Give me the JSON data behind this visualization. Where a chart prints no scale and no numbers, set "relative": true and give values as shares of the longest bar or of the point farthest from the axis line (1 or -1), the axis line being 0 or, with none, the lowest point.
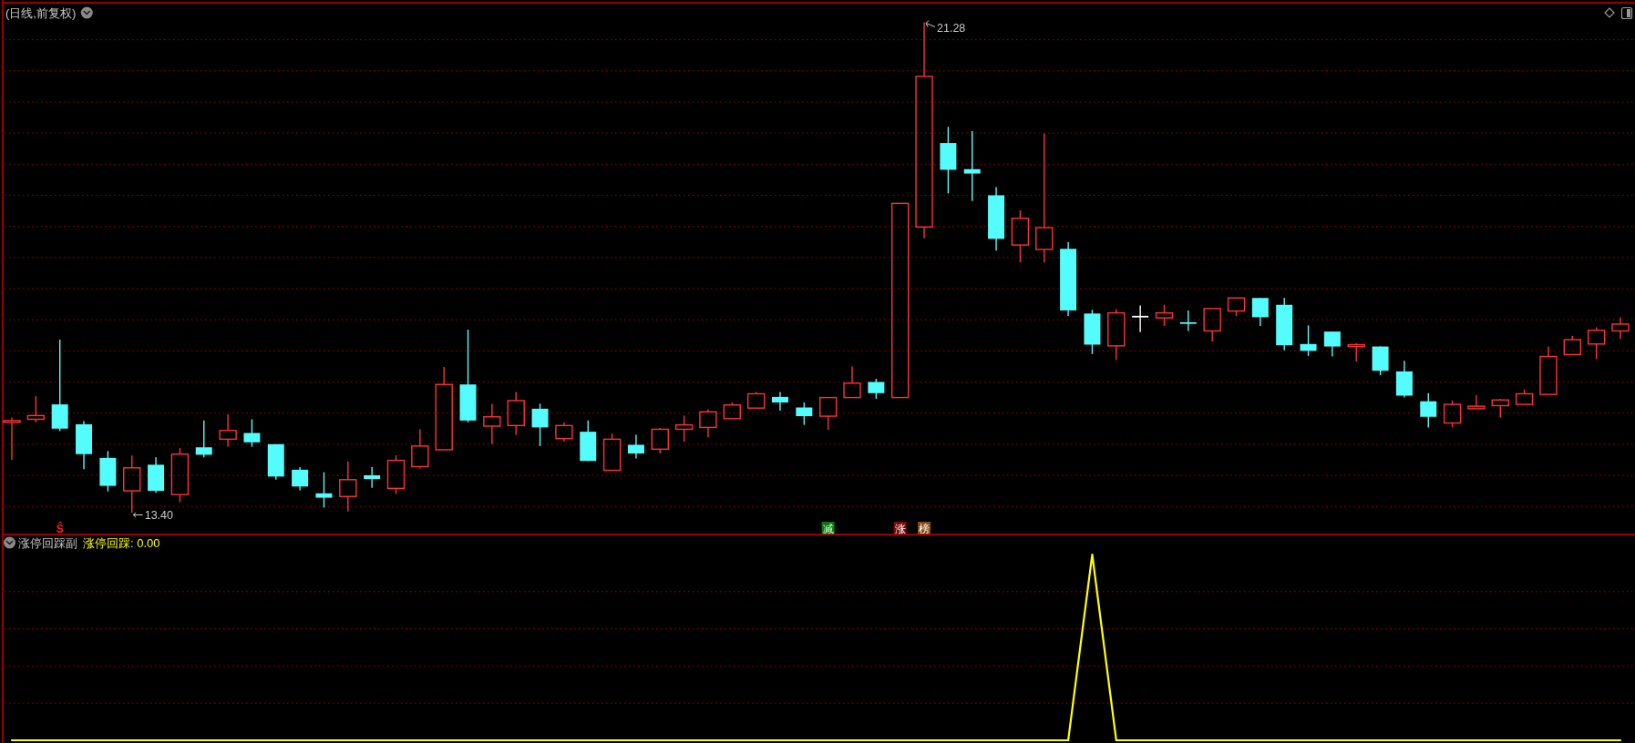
{
  "chart_data": [
    {
      "type": "candlestick",
      "title": "(日线,前复权)",
      "categories": [
        null,
        null,
        null,
        null,
        null,
        null,
        null,
        null,
        null,
        null,
        null,
        null,
        null,
        null,
        null,
        null,
        null,
        null,
        null,
        null,
        null,
        null,
        null,
        null,
        null,
        null,
        null,
        null,
        null,
        null,
        null,
        null,
        null,
        null,
        null,
        null,
        null,
        null,
        null,
        null,
        null,
        null,
        null,
        null,
        null,
        null,
        null,
        null,
        null,
        null,
        null,
        null,
        null,
        null,
        null,
        null,
        null,
        null,
        null,
        null,
        null,
        null,
        null,
        null,
        null,
        null,
        null,
        null
      ],
      "ohlc": [
        [
          14.85,
          14.93,
          14.25,
          14.88
        ],
        [
          14.9,
          15.27,
          14.85,
          14.96
        ],
        [
          15.14,
          16.18,
          14.71,
          14.75
        ],
        [
          14.82,
          14.87,
          14.1,
          14.34
        ],
        [
          14.28,
          14.39,
          13.74,
          13.83
        ],
        [
          13.75,
          14.32,
          13.4,
          14.12
        ],
        [
          14.17,
          14.29,
          13.72,
          13.75
        ],
        [
          13.69,
          14.44,
          13.57,
          14.34
        ],
        [
          14.45,
          14.88,
          14.29,
          14.33
        ],
        [
          14.58,
          14.98,
          14.46,
          14.72
        ],
        [
          14.68,
          14.9,
          14.46,
          14.53
        ],
        [
          14.5,
          14.5,
          13.93,
          13.98
        ],
        [
          14.09,
          14.13,
          13.76,
          13.82
        ],
        [
          13.71,
          14.05,
          13.48,
          13.64
        ],
        [
          13.66,
          14.22,
          13.42,
          13.93
        ],
        [
          14.0,
          14.13,
          13.8,
          13.94
        ],
        [
          13.79,
          14.32,
          13.7,
          14.24
        ],
        [
          14.14,
          14.74,
          14.11,
          14.47
        ],
        [
          14.41,
          15.74,
          14.41,
          15.46
        ],
        [
          15.46,
          16.34,
          14.85,
          14.88
        ],
        [
          14.79,
          15.15,
          14.5,
          14.94
        ],
        [
          14.8,
          15.34,
          14.65,
          15.2
        ],
        [
          15.07,
          15.15,
          14.47,
          14.77
        ],
        [
          14.59,
          14.85,
          14.54,
          14.8
        ],
        [
          14.7,
          14.88,
          14.23,
          14.23
        ],
        [
          14.08,
          14.67,
          14.08,
          14.58
        ],
        [
          14.49,
          14.65,
          14.27,
          14.35
        ],
        [
          14.42,
          14.76,
          14.35,
          14.74
        ],
        [
          14.74,
          14.96,
          14.54,
          14.81
        ],
        [
          14.77,
          15.06,
          14.61,
          15.02
        ],
        [
          14.91,
          15.17,
          14.91,
          15.13
        ],
        [
          15.08,
          15.34,
          15.08,
          15.31
        ],
        [
          15.26,
          15.34,
          15.04,
          15.17
        ],
        [
          15.09,
          15.17,
          14.81,
          14.95
        ],
        [
          14.95,
          15.25,
          14.73,
          15.25
        ],
        [
          15.25,
          15.75,
          15.25,
          15.48
        ],
        [
          15.5,
          15.55,
          15.23,
          15.32
        ],
        [
          15.25,
          18.37,
          15.25,
          18.37
        ],
        [
          17.99,
          21.28,
          17.81,
          20.41
        ],
        [
          19.34,
          19.6,
          18.53,
          18.91
        ],
        [
          18.92,
          19.53,
          18.41,
          18.85
        ],
        [
          18.5,
          18.63,
          17.61,
          17.8
        ],
        [
          17.7,
          18.26,
          17.42,
          18.13
        ],
        [
          17.63,
          19.49,
          17.42,
          17.98
        ],
        [
          17.64,
          17.75,
          16.56,
          16.65
        ],
        [
          16.6,
          16.66,
          15.95,
          16.1
        ],
        [
          16.08,
          16.67,
          15.85,
          16.61
        ],
        [
          16.55,
          16.73,
          16.3,
          16.55
        ],
        [
          16.53,
          16.74,
          16.4,
          16.61
        ],
        [
          16.46,
          16.65,
          16.32,
          16.44
        ],
        [
          16.32,
          16.68,
          16.15,
          16.68
        ],
        [
          16.64,
          16.85,
          16.56,
          16.85
        ],
        [
          16.85,
          16.85,
          16.4,
          16.54
        ],
        [
          16.74,
          16.85,
          16.01,
          16.09
        ],
        [
          16.11,
          16.41,
          15.92,
          16.0
        ],
        [
          16.31,
          16.31,
          15.91,
          16.07
        ],
        [
          16.07,
          16.12,
          15.83,
          16.1
        ],
        [
          16.07,
          16.07,
          15.61,
          15.68
        ],
        [
          15.67,
          15.84,
          15.25,
          15.28
        ],
        [
          15.19,
          15.32,
          14.77,
          14.94
        ],
        [
          14.84,
          15.2,
          14.77,
          15.14
        ],
        [
          15.07,
          15.29,
          15.07,
          15.11
        ],
        [
          15.12,
          15.23,
          14.93,
          15.21
        ],
        [
          15.14,
          15.38,
          15.14,
          15.31
        ],
        [
          15.3,
          16.07,
          15.3,
          15.91
        ],
        [
          15.94,
          16.24,
          15.94,
          16.18
        ],
        [
          16.11,
          16.38,
          15.87,
          16.33
        ],
        [
          16.32,
          16.54,
          16.19,
          16.43
        ]
      ],
      "colors": [
        "#ff3232",
        "#ff3232",
        "#54fcfc",
        "#54fcfc",
        "#54fcfc",
        "#ff3232",
        "#54fcfc",
        "#ff3232",
        "#54fcfc",
        "#ff3232",
        "#54fcfc",
        "#54fcfc",
        "#54fcfc",
        "#54fcfc",
        "#ff3232",
        "#54fcfc",
        "#ff3232",
        "#ff3232",
        "#ff3232",
        "#54fcfc",
        "#ff3232",
        "#ff3232",
        "#54fcfc",
        "#ff3232",
        "#54fcfc",
        "#ff3232",
        "#54fcfc",
        "#ff3232",
        "#ff3232",
        "#ff3232",
        "#ff3232",
        "#ff3232",
        "#54fcfc",
        "#54fcfc",
        "#ff3232",
        "#ff3232",
        "#54fcfc",
        "#ff3232",
        "#ff3232",
        "#54fcfc",
        "#54fcfc",
        "#54fcfc",
        "#ff3232",
        "#ff3232",
        "#54fcfc",
        "#54fcfc",
        "#ff3232",
        "#ffffff",
        "#ff3232",
        "#54fcfc",
        "#ff3232",
        "#ff3232",
        "#54fcfc",
        "#54fcfc",
        "#54fcfc",
        "#54fcfc",
        "#ff3232",
        "#54fcfc",
        "#54fcfc",
        "#54fcfc",
        "#ff3232",
        "#ff3232",
        "#ff3232",
        "#ff3232",
        "#ff3232",
        "#ff3232",
        "#ff3232",
        "#ff3232"
      ],
      "ref_lines": [
        {
          "axis": "y",
          "value": 21.0,
          "color": "#a00000",
          "line_style": "dotted"
        },
        {
          "axis": "y",
          "value": 20.5,
          "color": "#a00000",
          "line_style": "dotted"
        },
        {
          "axis": "y",
          "value": 20.0,
          "color": "#a00000",
          "line_style": "dotted"
        },
        {
          "axis": "y",
          "value": 19.5,
          "color": "#a00000",
          "line_style": "dotted"
        },
        {
          "axis": "y",
          "value": 19.0,
          "color": "#a00000",
          "line_style": "dotted"
        },
        {
          "axis": "y",
          "value": 18.5,
          "color": "#a00000",
          "line_style": "dotted"
        },
        {
          "axis": "y",
          "value": 18.0,
          "color": "#a00000",
          "line_style": "dotted"
        },
        {
          "axis": "y",
          "value": 17.5,
          "color": "#a00000",
          "line_style": "dotted"
        },
        {
          "axis": "y",
          "value": 17.0,
          "color": "#a00000",
          "line_style": "dotted"
        },
        {
          "axis": "y",
          "value": 16.5,
          "color": "#a00000",
          "line_style": "dotted"
        },
        {
          "axis": "y",
          "value": 16.0,
          "color": "#a00000",
          "line_style": "dotted"
        },
        {
          "axis": "y",
          "value": 15.5,
          "color": "#a00000",
          "line_style": "dotted"
        },
        {
          "axis": "y",
          "value": 15.0,
          "color": "#a00000",
          "line_style": "dotted"
        },
        {
          "axis": "y",
          "value": 14.5,
          "color": "#a00000",
          "line_style": "dotted"
        },
        {
          "axis": "y",
          "value": 14.0,
          "color": "#a00000",
          "line_style": "dotted"
        },
        {
          "axis": "y",
          "value": 13.5,
          "color": "#a00000",
          "line_style": "dotted"
        }
      ],
      "annotations": [
        "21.28",
        "13.40",
        "Ŝ",
        "减",
        "涨",
        "榜"
      ]
    },
    {
      "type": "line",
      "title": "涨停回踩副",
      "categories": [
        null,
        null,
        null,
        null,
        null,
        null,
        null,
        null,
        null,
        null,
        null,
        null,
        null,
        null,
        null,
        null,
        null,
        null,
        null,
        null,
        null,
        null,
        null,
        null,
        null,
        null,
        null,
        null,
        null,
        null,
        null,
        null,
        null,
        null,
        null,
        null,
        null,
        null,
        null,
        null,
        null,
        null,
        null,
        null,
        null,
        null,
        null,
        null,
        null,
        null,
        null,
        null,
        null,
        null,
        null,
        null,
        null,
        null,
        null,
        null,
        null,
        null,
        null,
        null,
        null,
        null,
        null,
        null
      ],
      "series": [
        {
          "name": "涨停回踩",
          "color": "#ffff00",
          "values": [
            0,
            0,
            0,
            0,
            0,
            0,
            0,
            0,
            0,
            0,
            0,
            0,
            0,
            0,
            0,
            0,
            0,
            0,
            0,
            0,
            0,
            0,
            0,
            0,
            0,
            0,
            0,
            0,
            0,
            0,
            0,
            0,
            0,
            0,
            0,
            0,
            0,
            0,
            0,
            0,
            0,
            0,
            0,
            0,
            0,
            1,
            0,
            0,
            0,
            0,
            0,
            0,
            0,
            0,
            0,
            0,
            0,
            0,
            0,
            0,
            0,
            0,
            0,
            0,
            0,
            0,
            0,
            0
          ]
        }
      ],
      "relative": true,
      "legend": "top left",
      "ref_lines": [
        {
          "axis": "y",
          "value": 0.8,
          "color": "#a00000",
          "line_style": "dotted"
        },
        {
          "axis": "y",
          "value": 0.6,
          "color": "#a00000",
          "line_style": "dotted"
        },
        {
          "axis": "y",
          "value": 0.4,
          "color": "#a00000",
          "line_style": "dotted"
        },
        {
          "axis": "y",
          "value": 0.2,
          "color": "#a00000",
          "line_style": "dotted"
        }
      ],
      "annotations": [
        ": 0.00"
      ]
    }
  ]
}
